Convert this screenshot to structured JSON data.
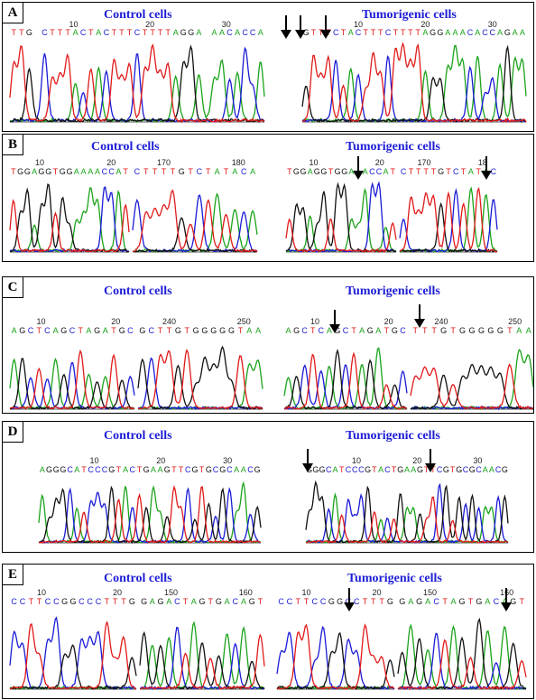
{
  "figure": {
    "panels": [
      {
        "id": "A",
        "titles": {
          "control": "Control cells",
          "tumor": "Tumorigenic cells"
        },
        "control_seq": [
          {
            "label": "TTG CTTTACTACTTTCTTTTAGGA AACACCA",
            "ticks": [
              "10",
              "20",
              "30"
            ]
          }
        ],
        "tumor_seq": [
          {
            "label": "GTTTCTACTTTCTTTTAGGAAACACCAGAA",
            "ticks": [
              "10",
              "20",
              "30"
            ]
          }
        ],
        "arrow_count": 3
      },
      {
        "id": "B",
        "titles": {
          "control": "Control cells",
          "tumor": "Tumorigenic cells"
        },
        "control_seq": [
          {
            "label": "TGGAGGTGGAAAACCAT",
            "ticks": [
              "10",
              "20"
            ]
          },
          {
            "label": "CTTTTGTCTATACA",
            "ticks": [
              "170",
              "180"
            ]
          }
        ],
        "tumor_seq": [
          {
            "label": "TGGAGGTGGAAACCAT",
            "ticks": [
              "10",
              "20"
            ]
          },
          {
            "label": "CTTTTGTCTATAC",
            "ticks": [
              "170",
              "18"
            ]
          }
        ],
        "arrow_count": 2
      },
      {
        "id": "C",
        "titles": {
          "control": "Control cells",
          "tumor": "Tumorigenic cells"
        },
        "control_seq": [
          {
            "label": "AGCTCAGCTAGATGC",
            "ticks": [
              "10",
              "20"
            ]
          },
          {
            "label": "GCTTGTGGGGGTAA",
            "ticks": [
              "240",
              "250"
            ]
          }
        ],
        "tumor_seq": [
          {
            "label": "AGCTCAGCTAGATGC",
            "ticks": [
              "10",
              "20"
            ]
          },
          {
            "label": "TTTGTGGGGGTAA",
            "ticks": [
              "240",
              "250"
            ]
          }
        ],
        "arrow_count": 2
      },
      {
        "id": "D",
        "titles": {
          "control": "Control cells",
          "tumor": "Tumorigenic cells"
        },
        "control_seq": [
          {
            "label": "AGGGCATCCCGTACTGAAGTTCGTGCGCAACG",
            "ticks": [
              "10",
              "20",
              "30"
            ]
          }
        ],
        "tumor_seq": [
          {
            "label": "GGGCATCCCGTACTGAAGTTCGTGCGCAACG",
            "ticks": [
              "10",
              "20",
              "30"
            ]
          }
        ],
        "arrow_count": 2
      },
      {
        "id": "E",
        "titles": {
          "control": "Control cells",
          "tumor": "Tumorigenic cells"
        },
        "control_seq": [
          {
            "label": "CCTTCCGGCCCTTTG",
            "ticks": [
              "10",
              "20"
            ]
          },
          {
            "label": "GAGACTAGTGACAGT",
            "ticks": [
              "150",
              "160"
            ]
          }
        ],
        "tumor_seq": [
          {
            "label": "CCTTCCGGCCTTTG",
            "ticks": [
              "10",
              "20"
            ]
          },
          {
            "label": "GAGACTAGTGACAGT",
            "ticks": [
              "150",
              "160"
            ]
          }
        ],
        "arrow_count": 2
      }
    ],
    "base_colors": {
      "A": "#1aa31a",
      "C": "#1a1ad6",
      "G": "#111111",
      "T": "#e01a1a"
    }
  }
}
